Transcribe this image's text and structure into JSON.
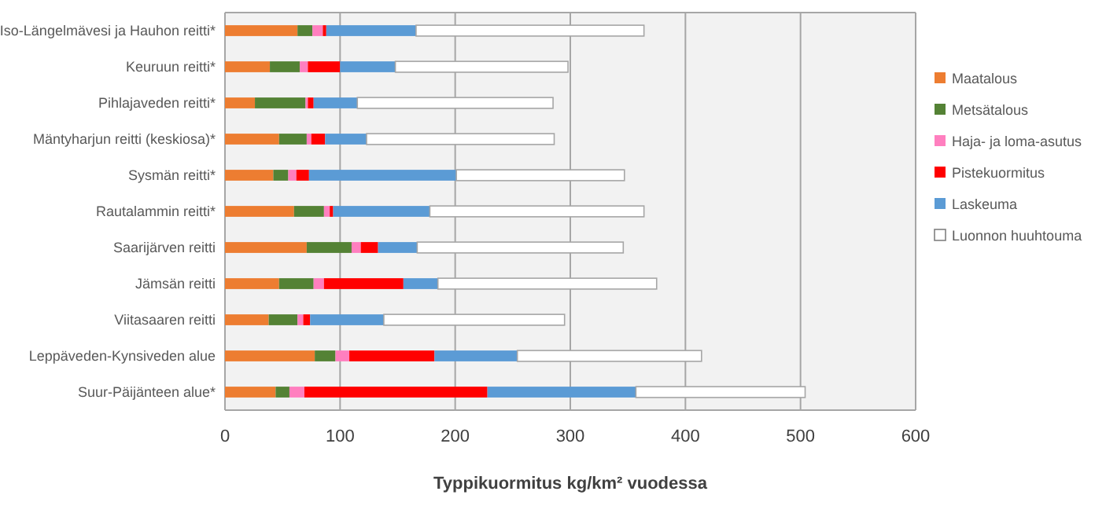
{
  "chart_data": {
    "type": "bar",
    "orientation": "horizontal",
    "stacked": true,
    "xlabel": "Typpikuormitus kg/km² vuodessa",
    "categories": [
      "Iso-Längelmävesi ja Hauhon reitti*",
      "Keuruun reitti*",
      "Pihlajaveden reitti*",
      "Mäntyharjun reitti (keskiosa)*",
      "Sysmän reitti*",
      "Rautalammin reitti*",
      "Saarijärven reitti",
      "Jämsän reitti",
      "Viitasaaren reitti",
      "Leppäveden-Kynsiveden alue",
      "Suur-Päijänteen alue*"
    ],
    "series": [
      {
        "name": "Maatalous",
        "color": "#ed7d31",
        "values": [
          63,
          39,
          26,
          47,
          42,
          60,
          71,
          47,
          38,
          78,
          44
        ]
      },
      {
        "name": "Metsätalous",
        "color": "#548235",
        "values": [
          13,
          26,
          44,
          24,
          13,
          26,
          39,
          30,
          25,
          18,
          12
        ]
      },
      {
        "name": "Haja- ja loma-asutus",
        "color": "#ff7fbf",
        "values": [
          9,
          7,
          2,
          4,
          7,
          5,
          8,
          9,
          5,
          12,
          13
        ]
      },
      {
        "name": "Pistekuormitus",
        "color": "#ff0000",
        "values": [
          3,
          28,
          5,
          12,
          11,
          3,
          15,
          69,
          6,
          74,
          159
        ]
      },
      {
        "name": "Laskeuma",
        "color": "#5b9bd5",
        "values": [
          78,
          48,
          38,
          36,
          128,
          84,
          34,
          30,
          64,
          72,
          129
        ]
      },
      {
        "name": "Luonnon huuhtouma",
        "color": "#ffffff",
        "values": [
          198,
          150,
          170,
          163,
          146,
          186,
          179,
          190,
          157,
          160,
          147
        ]
      }
    ],
    "xlim": [
      0,
      600
    ],
    "xticks": [
      0,
      100,
      200,
      300,
      400,
      500,
      600
    ],
    "grid": "x",
    "legend": "right"
  }
}
